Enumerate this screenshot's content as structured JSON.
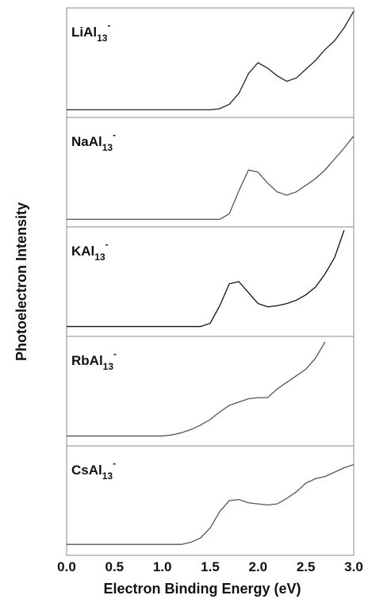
{
  "ylabel": "Photoelectron Intensity",
  "chart_data": [
    {
      "type": "line",
      "label": {
        "name": "LiAl",
        "subscript": "13",
        "superscript": "-"
      },
      "color": "#222222",
      "xlim": [
        0,
        3
      ],
      "ylim": [
        0,
        1
      ],
      "x": [
        0.0,
        0.1,
        0.2,
        0.3,
        0.4,
        0.5,
        0.6,
        0.7,
        0.8,
        0.9,
        1.0,
        1.1,
        1.2,
        1.3,
        1.4,
        1.5,
        1.6,
        1.7,
        1.8,
        1.9,
        2.0,
        2.1,
        2.2,
        2.3,
        2.4,
        2.5,
        2.6,
        2.7,
        2.8,
        2.9,
        3.0
      ],
      "values": [
        0.07,
        0.07,
        0.07,
        0.07,
        0.07,
        0.07,
        0.07,
        0.07,
        0.07,
        0.07,
        0.07,
        0.07,
        0.07,
        0.07,
        0.07,
        0.07,
        0.08,
        0.12,
        0.22,
        0.4,
        0.5,
        0.45,
        0.38,
        0.33,
        0.36,
        0.44,
        0.52,
        0.62,
        0.7,
        0.82,
        0.97
      ]
    },
    {
      "type": "line",
      "label": {
        "name": "NaAl",
        "subscript": "13",
        "superscript": "-"
      },
      "color": "#555555",
      "xlim": [
        0,
        3
      ],
      "ylim": [
        0,
        1
      ],
      "x": [
        0.0,
        0.1,
        0.2,
        0.3,
        0.4,
        0.5,
        0.6,
        0.7,
        0.8,
        0.9,
        1.0,
        1.1,
        1.2,
        1.3,
        1.4,
        1.5,
        1.6,
        1.7,
        1.8,
        1.9,
        2.0,
        2.1,
        2.2,
        2.3,
        2.4,
        2.5,
        2.6,
        2.7,
        2.8,
        2.9,
        3.0
      ],
      "values": [
        0.07,
        0.07,
        0.07,
        0.07,
        0.07,
        0.07,
        0.07,
        0.07,
        0.07,
        0.07,
        0.07,
        0.07,
        0.07,
        0.07,
        0.07,
        0.07,
        0.07,
        0.12,
        0.33,
        0.52,
        0.5,
        0.4,
        0.32,
        0.29,
        0.32,
        0.38,
        0.44,
        0.52,
        0.62,
        0.72,
        0.83
      ]
    },
    {
      "type": "line",
      "label": {
        "name": "KAl",
        "subscript": "13",
        "superscript": "-"
      },
      "color": "#111111",
      "xlim": [
        0,
        3
      ],
      "ylim": [
        0,
        1
      ],
      "x": [
        0.0,
        0.1,
        0.2,
        0.3,
        0.4,
        0.5,
        0.6,
        0.7,
        0.8,
        0.9,
        1.0,
        1.1,
        1.2,
        1.3,
        1.4,
        1.5,
        1.6,
        1.7,
        1.8,
        1.9,
        2.0,
        2.1,
        2.2,
        2.3,
        2.4,
        2.5,
        2.6,
        2.7,
        2.8,
        2.9,
        3.0
      ],
      "values": [
        0.09,
        0.09,
        0.09,
        0.09,
        0.09,
        0.09,
        0.09,
        0.09,
        0.09,
        0.09,
        0.09,
        0.09,
        0.09,
        0.09,
        0.09,
        0.12,
        0.28,
        0.48,
        0.5,
        0.4,
        0.3,
        0.27,
        0.28,
        0.3,
        0.33,
        0.38,
        0.45,
        0.57,
        0.72,
        0.97,
        null
      ]
    },
    {
      "type": "line",
      "label": {
        "name": "RbAl",
        "subscript": "13",
        "superscript": "-"
      },
      "color": "#555555",
      "xlim": [
        0,
        3
      ],
      "ylim": [
        0,
        1
      ],
      "x": [
        0.0,
        0.1,
        0.2,
        0.3,
        0.4,
        0.5,
        0.6,
        0.7,
        0.8,
        0.9,
        1.0,
        1.1,
        1.2,
        1.3,
        1.4,
        1.5,
        1.6,
        1.7,
        1.8,
        1.9,
        2.0,
        2.1,
        2.2,
        2.3,
        2.4,
        2.5,
        2.6,
        2.7,
        2.8,
        2.9,
        3.0
      ],
      "values": [
        0.09,
        0.09,
        0.09,
        0.09,
        0.09,
        0.09,
        0.09,
        0.09,
        0.09,
        0.09,
        0.09,
        0.1,
        0.12,
        0.15,
        0.19,
        0.24,
        0.31,
        0.37,
        0.4,
        0.43,
        0.44,
        0.44,
        0.52,
        0.58,
        0.64,
        0.7,
        0.8,
        0.95,
        null,
        null,
        null
      ]
    },
    {
      "type": "line",
      "label": {
        "name": "CsAl",
        "subscript": "13",
        "superscript": "-"
      },
      "color": "#555555",
      "xlim": [
        0,
        3
      ],
      "ylim": [
        0,
        1
      ],
      "x": [
        0.0,
        0.1,
        0.2,
        0.3,
        0.4,
        0.5,
        0.6,
        0.7,
        0.8,
        0.9,
        1.0,
        1.1,
        1.2,
        1.3,
        1.4,
        1.5,
        1.6,
        1.7,
        1.8,
        1.9,
        2.0,
        2.1,
        2.2,
        2.3,
        2.4,
        2.5,
        2.6,
        2.7,
        2.8,
        2.9,
        3.0
      ],
      "values": [
        0.1,
        0.1,
        0.1,
        0.1,
        0.1,
        0.1,
        0.1,
        0.1,
        0.1,
        0.1,
        0.1,
        0.1,
        0.1,
        0.12,
        0.16,
        0.25,
        0.4,
        0.5,
        0.51,
        0.48,
        0.47,
        0.46,
        0.47,
        0.52,
        0.58,
        0.66,
        0.7,
        0.72,
        0.76,
        0.8,
        0.83
      ],
      "xticks": [
        {
          "value": 0,
          "label": "0.0"
        },
        0.5,
        {
          "value": 1,
          "label": "1.0"
        },
        1.5,
        {
          "value": 2,
          "label": "2.0"
        },
        2.5,
        {
          "value": 3,
          "label": "3.0"
        }
      ],
      "xlabel": "Electron Binding Energy (eV)"
    }
  ]
}
